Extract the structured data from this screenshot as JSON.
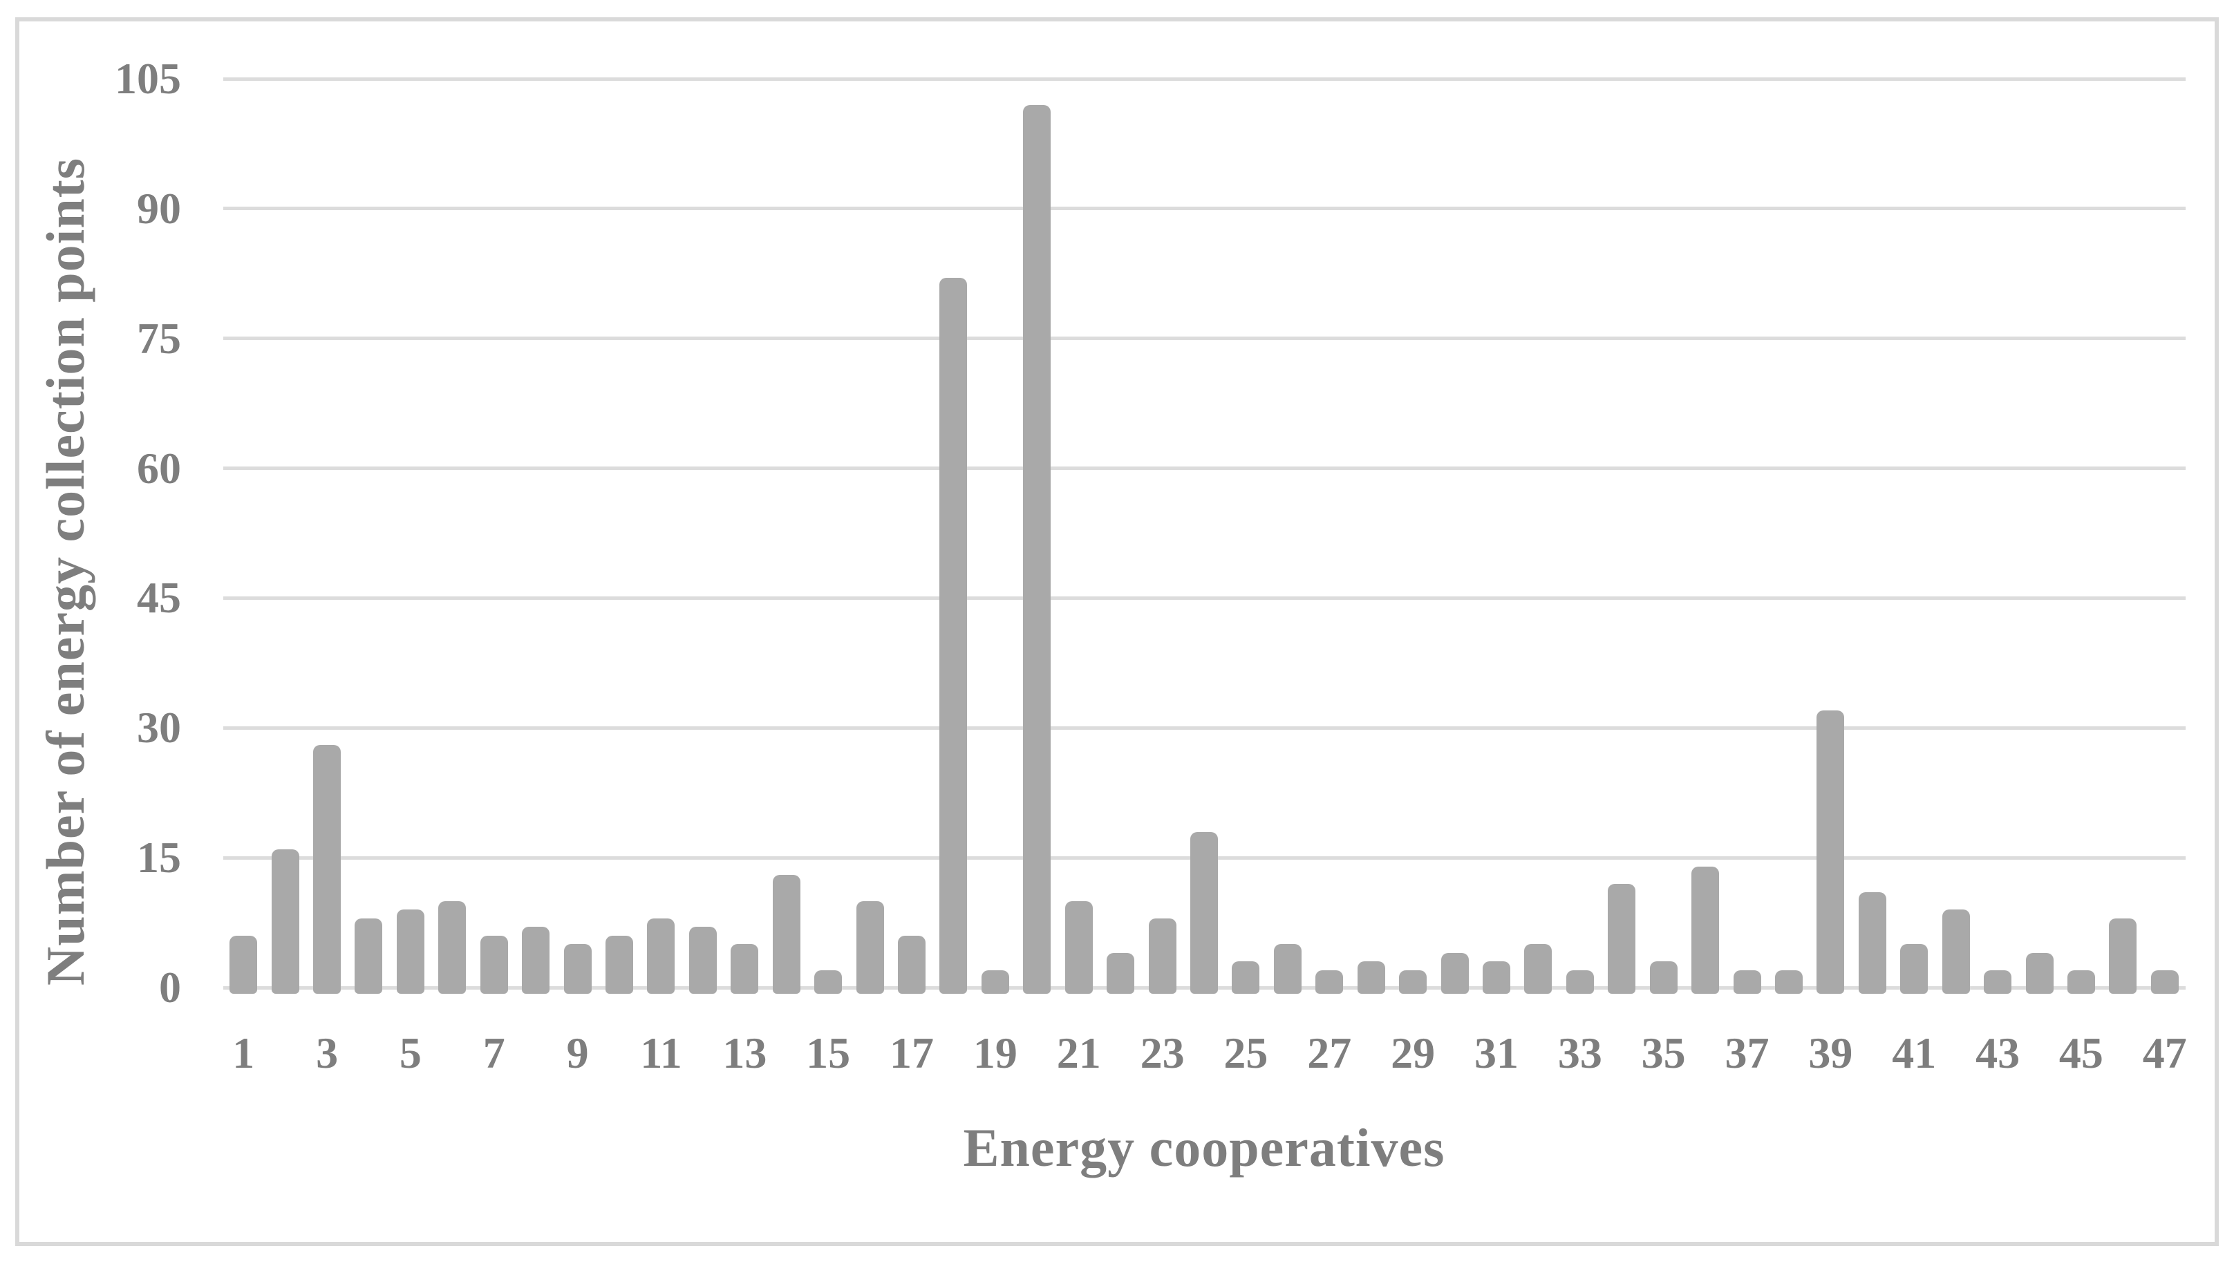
{
  "chart_data": {
    "type": "bar",
    "title": "",
    "xlabel": "Energy cooperatives",
    "ylabel": "Number of energy collection points",
    "x": [
      1,
      2,
      3,
      4,
      5,
      6,
      7,
      8,
      9,
      10,
      11,
      12,
      13,
      14,
      15,
      16,
      17,
      18,
      19,
      20,
      21,
      22,
      23,
      24,
      25,
      26,
      27,
      28,
      29,
      30,
      31,
      32,
      33,
      34,
      35,
      36,
      37,
      38,
      39,
      40,
      41,
      42,
      43,
      44,
      45,
      46,
      47
    ],
    "values": [
      6,
      16,
      28,
      8,
      9,
      10,
      6,
      7,
      5,
      6,
      8,
      7,
      5,
      13,
      2,
      10,
      6,
      82,
      2,
      102,
      10,
      4,
      8,
      18,
      3,
      5,
      2,
      3,
      2,
      4,
      3,
      5,
      2,
      12,
      3,
      14,
      2,
      2,
      32,
      11,
      5,
      9,
      2,
      4,
      2,
      8,
      2
    ],
    "y_ticks": [
      0,
      15,
      30,
      45,
      60,
      75,
      90,
      105
    ],
    "x_tick_labels": [
      "1",
      "3",
      "5",
      "7",
      "9",
      "11",
      "13",
      "15",
      "17",
      "19",
      "21",
      "23",
      "25",
      "27",
      "29",
      "31",
      "33",
      "35",
      "37",
      "39",
      "41",
      "43",
      "45",
      "47"
    ],
    "ylim": [
      0,
      105
    ],
    "grid": "horizontal-only",
    "legend": "none",
    "bar_color": "#a9a9a9",
    "gridline_color": "#dcdcdc",
    "text_color": "#7e7e7e",
    "frame_color": "#d9d9d9",
    "background_color": "#ffffff"
  }
}
